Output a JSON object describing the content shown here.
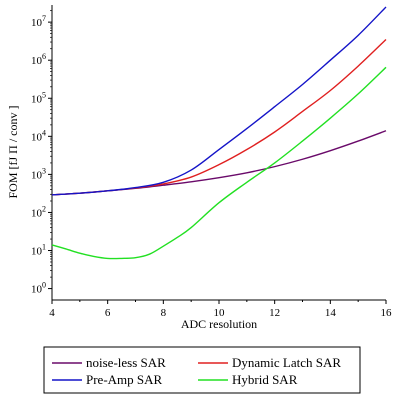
{
  "chart_data": {
    "type": "line",
    "xlabel": "ADC resolution",
    "ylabel": "FOM [fJ Π / conv ]",
    "xlim": [
      4,
      16
    ],
    "ylog": true,
    "ylim_exp": [
      -0.3,
      7.45
    ],
    "x_ticks": [
      4,
      6,
      8,
      10,
      12,
      14,
      16
    ],
    "y_tick_exponents": [
      0,
      1,
      2,
      3,
      4,
      5,
      6,
      7
    ],
    "y_tick_base": "10",
    "grid": false,
    "legend_position": "bottom",
    "series": [
      {
        "name": "noise-less SAR",
        "color": "#6a0a6a",
        "x": [
          4,
          5,
          6,
          7,
          8,
          9,
          10,
          11,
          12,
          13,
          14,
          15,
          16
        ],
        "y": [
          290,
          320,
          370,
          430,
          520,
          640,
          820,
          1100,
          1600,
          2500,
          4200,
          7500,
          14000
        ]
      },
      {
        "name": "Dynamic Latch SAR",
        "color": "#e02020",
        "x": [
          4,
          5,
          6,
          7,
          8,
          9,
          10,
          11,
          12,
          13,
          14,
          15,
          16
        ],
        "y": [
          290,
          320,
          370,
          440,
          560,
          850,
          1800,
          4500,
          13000,
          45000,
          160000,
          700000,
          3500000
        ]
      },
      {
        "name": "Pre-Amp SAR",
        "color": "#1414c8",
        "x": [
          4,
          5,
          6,
          7,
          8,
          9,
          10,
          11,
          12,
          13,
          14,
          15,
          16
        ],
        "y": [
          290,
          320,
          370,
          450,
          620,
          1300,
          4500,
          16000,
          60000,
          230000,
          1000000,
          4500000,
          25000000
        ]
      },
      {
        "name": "Hybrid SAR",
        "color": "#22e022",
        "x": [
          4,
          4.5,
          5,
          5.5,
          6,
          6.5,
          7,
          7.5,
          8,
          8.5,
          9,
          10,
          11,
          12,
          13,
          14,
          15,
          16
        ],
        "y": [
          14,
          11,
          8.5,
          7,
          6.2,
          6.2,
          6.5,
          8,
          13,
          22,
          40,
          180,
          620,
          2000,
          7500,
          30000,
          130000,
          650000
        ]
      }
    ]
  }
}
